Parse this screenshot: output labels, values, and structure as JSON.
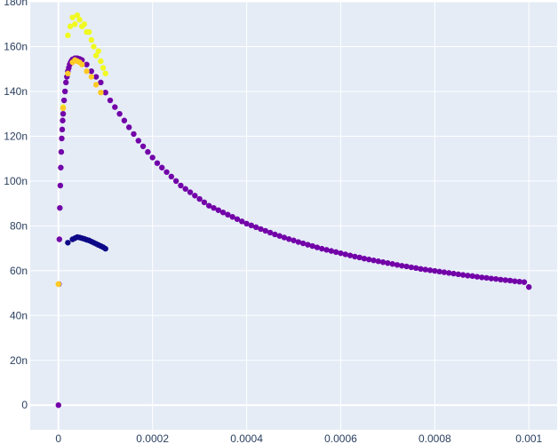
{
  "chart_data": {
    "type": "scatter",
    "title": "",
    "xlabel": "",
    "ylabel": "",
    "xlim": [
      -6e-05,
      0.00106
    ],
    "ylim": [
      -1.1e-08,
      1.8e-07
    ],
    "grid": true,
    "colors": {
      "plot_bg": "#e5ecf6",
      "grid": "#ffffff",
      "tick_text": "#2a3f5f"
    },
    "x_ticks": [
      {
        "value": 0,
        "label": "0"
      },
      {
        "value": 0.0002,
        "label": "0.0002"
      },
      {
        "value": 0.0004,
        "label": "0.0004"
      },
      {
        "value": 0.0006,
        "label": "0.0006"
      },
      {
        "value": 0.0008,
        "label": "0.0008"
      },
      {
        "value": 0.001,
        "label": "0.001"
      }
    ],
    "y_ticks": [
      {
        "value": 0,
        "label": "0"
      },
      {
        "value": 2e-08,
        "label": "20n"
      },
      {
        "value": 4e-08,
        "label": "40n"
      },
      {
        "value": 6e-08,
        "label": "60n"
      },
      {
        "value": 8e-08,
        "label": "80n"
      },
      {
        "value": 1e-07,
        "label": "100n"
      },
      {
        "value": 1.2e-07,
        "label": "120n"
      },
      {
        "value": 1.4e-07,
        "label": "140n"
      },
      {
        "value": 1.6e-07,
        "label": "160n"
      },
      {
        "value": 1.8e-07,
        "label": "180n"
      }
    ],
    "series": [
      {
        "color": "#7201a8",
        "x": [
          0,
          1e-06,
          2e-06,
          3e-06,
          4e-06,
          5e-06,
          6e-06,
          7e-06,
          8e-06,
          9e-06,
          1e-05,
          1.2e-05,
          1.4e-05,
          1.6e-05,
          1.8e-05,
          2e-05,
          2.2e-05,
          2.4e-05,
          2.6e-05,
          2.8e-05,
          3e-05,
          3.5e-05,
          4e-05,
          4.5e-05,
          5e-05,
          6e-05,
          7e-05,
          8e-05,
          9e-05,
          0.0001,
          0.00011,
          0.00012,
          0.00013,
          0.00014,
          0.00015,
          0.00016,
          0.00017,
          0.00018,
          0.00019,
          0.0002,
          0.00021,
          0.00022,
          0.00023,
          0.00024,
          0.00025,
          0.00026,
          0.00027,
          0.00028,
          0.00029,
          0.0003,
          0.00031,
          0.00032,
          0.00033,
          0.00034,
          0.00035,
          0.00036,
          0.00037,
          0.00038,
          0.00039,
          0.0004,
          0.00041,
          0.00042,
          0.00043,
          0.00044,
          0.00045,
          0.00046,
          0.00047,
          0.00048,
          0.00049,
          0.0005,
          0.00051,
          0.00052,
          0.00053,
          0.00054,
          0.00055,
          0.00056,
          0.00057,
          0.00058,
          0.00059,
          0.0006,
          0.00061,
          0.00062,
          0.00063,
          0.00064,
          0.00065,
          0.00066,
          0.00067,
          0.00068,
          0.00069,
          0.0007,
          0.00071,
          0.00072,
          0.00073,
          0.00074,
          0.00075,
          0.00076,
          0.00077,
          0.00078,
          0.00079,
          0.0008,
          0.00081,
          0.00082,
          0.00083,
          0.00084,
          0.00085,
          0.00086,
          0.00087,
          0.00088,
          0.00089,
          0.0009,
          0.00091,
          0.00092,
          0.00093,
          0.00094,
          0.00095,
          0.00096,
          0.00097,
          0.00098,
          0.00099,
          0.001
        ],
        "y": [
          0,
          5.4e-08,
          7.4e-08,
          8.8e-08,
          9.8e-08,
          1.06e-07,
          1.13e-07,
          1.19e-07,
          1.23e-07,
          1.27e-07,
          1.3e-07,
          1.36e-07,
          1.4e-07,
          1.44e-07,
          1.465e-07,
          1.49e-07,
          1.505e-07,
          1.52e-07,
          1.53e-07,
          1.537e-07,
          1.543e-07,
          1.548e-07,
          1.548e-07,
          1.545e-07,
          1.54e-07,
          1.52e-07,
          1.49e-07,
          1.465e-07,
          1.44e-07,
          1.395e-07,
          1.36e-07,
          1.33e-07,
          1.3e-07,
          1.27e-07,
          1.24e-07,
          1.21e-07,
          1.18e-07,
          1.155e-07,
          1.13e-07,
          1.105e-07,
          1.08e-07,
          1.06e-07,
          1.04e-07,
          1.02e-07,
          1e-07,
          9.8e-08,
          9.65e-08,
          9.5e-08,
          9.35e-08,
          9.2e-08,
          9.05e-08,
          8.9e-08,
          8.8e-08,
          8.7e-08,
          8.6e-08,
          8.5e-08,
          8.4e-08,
          8.3e-08,
          8.2e-08,
          8.1e-08,
          8.02e-08,
          7.94e-08,
          7.86e-08,
          7.78e-08,
          7.7e-08,
          7.62e-08,
          7.55e-08,
          7.48e-08,
          7.41e-08,
          7.35e-08,
          7.28e-08,
          7.22e-08,
          7.16e-08,
          7.1e-08,
          7.04e-08,
          6.98e-08,
          6.93e-08,
          6.88e-08,
          6.83e-08,
          6.78e-08,
          6.73e-08,
          6.68e-08,
          6.63e-08,
          6.59e-08,
          6.54e-08,
          6.5e-08,
          6.46e-08,
          6.42e-08,
          6.38e-08,
          6.34e-08,
          6.3e-08,
          6.26e-08,
          6.22e-08,
          6.19e-08,
          6.15e-08,
          6.12e-08,
          6.08e-08,
          6.05e-08,
          6.02e-08,
          5.99e-08,
          5.96e-08,
          5.93e-08,
          5.9e-08,
          5.87e-08,
          5.84e-08,
          5.81e-08,
          5.78e-08,
          5.76e-08,
          5.73e-08,
          5.7e-08,
          5.68e-08,
          5.65e-08,
          5.63e-08,
          5.6e-08,
          5.58e-08,
          5.56e-08,
          5.53e-08,
          5.51e-08,
          5.49e-08,
          5.27e-08
        ]
      },
      {
        "color": "#f0f921",
        "x": [
          0,
          1e-05,
          2e-05,
          2.5e-05,
          3e-05,
          3.5e-05,
          4e-05,
          4.5e-05,
          5e-05,
          5.5e-05,
          6e-05,
          6.5e-05,
          7e-05,
          7.5e-05,
          8e-05,
          8.5e-05,
          9e-05,
          9.5e-05,
          0.0001
        ],
        "y": [
          5.4e-08,
          1.33e-07,
          1.65e-07,
          1.69e-07,
          1.73e-07,
          1.7e-07,
          1.74e-07,
          1.72e-07,
          1.69e-07,
          1.7e-07,
          1.665e-07,
          1.665e-07,
          1.63e-07,
          1.6e-07,
          1.56e-07,
          1.58e-07,
          1.535e-07,
          1.505e-07,
          1.48e-07
        ]
      },
      {
        "color": "#fdca26",
        "x": [
          0,
          1e-05,
          2e-05,
          3e-05,
          3.5e-05,
          4e-05,
          4.5e-05,
          5e-05,
          6e-05,
          7e-05,
          8e-05,
          9e-05
        ],
        "y": [
          5.4e-08,
          1.325e-07,
          1.48e-07,
          1.53e-07,
          1.54e-07,
          1.535e-07,
          1.53e-07,
          1.52e-07,
          1.49e-07,
          1.465e-07,
          1.43e-07,
          1.395e-07
        ]
      },
      {
        "color": "#0d0887",
        "x": [
          2e-05,
          3e-05,
          3.5e-05,
          4e-05,
          4.5e-05,
          5e-05,
          5.5e-05,
          6e-05,
          6.5e-05,
          7e-05,
          7.5e-05,
          8e-05,
          8.5e-05,
          9e-05,
          9.5e-05,
          0.0001
        ],
        "y": [
          7.25e-08,
          7.4e-08,
          7.45e-08,
          7.5e-08,
          7.48e-08,
          7.45e-08,
          7.42e-08,
          7.38e-08,
          7.35e-08,
          7.3e-08,
          7.25e-08,
          7.2e-08,
          7.15e-08,
          7.1e-08,
          7.05e-08,
          6.98e-08
        ]
      }
    ]
  }
}
